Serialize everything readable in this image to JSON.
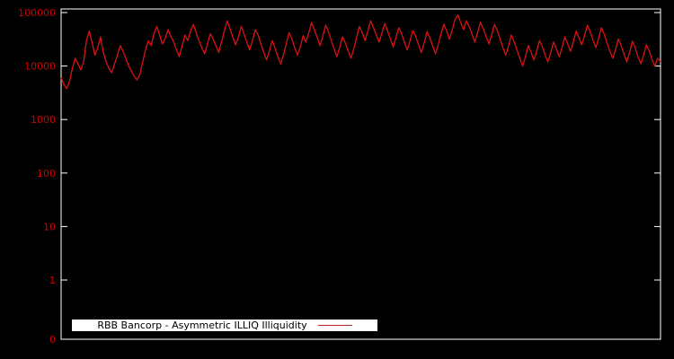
{
  "legend": {
    "label": "RBB Bancorp - Asymmetric ILLIQ Illiquidity"
  },
  "colors": {
    "background": "#000000",
    "axis": "#ffffff",
    "tick_label": "#cc0000",
    "series": "#dd1111",
    "legend_background": "#ffffff",
    "legend_text": "#000000"
  },
  "chart_data": {
    "type": "line",
    "title": "",
    "xlabel": "",
    "ylabel": "",
    "yscale": "log",
    "grid": false,
    "legend_position": "bottom-left",
    "y_tick_labels": [
      "100000",
      "10000",
      "1000",
      "100",
      "10",
      "1",
      "0"
    ],
    "y_tick_values": [
      100000,
      10000,
      1000,
      100,
      10,
      1
    ],
    "y_bottom_label": "0",
    "ylim_top": 100000,
    "series": [
      {
        "name": "RBB Bancorp - Asymmetric ILLIQ Illiquidity",
        "color": "#dd1111",
        "values": [
          6000,
          4500,
          3800,
          5200,
          9000,
          14000,
          11000,
          8500,
          12000,
          30000,
          45000,
          28000,
          16000,
          22000,
          35000,
          18000,
          12000,
          9000,
          7500,
          11000,
          16000,
          24000,
          19000,
          14000,
          10000,
          8000,
          6500,
          5500,
          7000,
          12000,
          20000,
          30000,
          24000,
          40000,
          55000,
          38000,
          26000,
          33000,
          48000,
          36000,
          28000,
          20000,
          15000,
          24000,
          38000,
          30000,
          45000,
          60000,
          42000,
          30000,
          22000,
          17000,
          26000,
          40000,
          32000,
          24000,
          18000,
          28000,
          45000,
          70000,
          50000,
          35000,
          25000,
          35000,
          55000,
          40000,
          28000,
          20000,
          30000,
          48000,
          38000,
          26000,
          18000,
          13000,
          19000,
          30000,
          22000,
          15000,
          11000,
          16000,
          26000,
          42000,
          32000,
          22000,
          16000,
          23000,
          37000,
          28000,
          42000,
          65000,
          48000,
          34000,
          24000,
          36000,
          58000,
          44000,
          30000,
          21000,
          15000,
          22000,
          35000,
          27000,
          19000,
          14000,
          21000,
          34000,
          55000,
          42000,
          30000,
          45000,
          70000,
          52000,
          38000,
          28000,
          42000,
          62000,
          46000,
          32000,
          23000,
          34000,
          52000,
          40000,
          28000,
          20000,
          30000,
          46000,
          36000,
          25000,
          18000,
          27000,
          44000,
          34000,
          24000,
          17000,
          25000,
          40000,
          60000,
          45000,
          32000,
          48000,
          75000,
          90000,
          65000,
          48000,
          70000,
          55000,
          40000,
          28000,
          42000,
          66000,
          50000,
          36000,
          26000,
          38000,
          60000,
          46000,
          32000,
          22000,
          16000,
          24000,
          38000,
          28000,
          20000,
          14000,
          10000,
          15000,
          24000,
          18000,
          13000,
          19000,
          30000,
          23000,
          16000,
          12000,
          18000,
          28000,
          21000,
          15000,
          22000,
          35000,
          26000,
          19000,
          28000,
          45000,
          34000,
          25000,
          37000,
          58000,
          44000,
          31000,
          22000,
          33000,
          52000,
          39000,
          27000,
          19000,
          14000,
          20000,
          32000,
          24000,
          17000,
          12000,
          18000,
          29000,
          22000,
          15000,
          11000,
          16000,
          25000,
          19000,
          13000,
          10000,
          14000,
          12000
        ]
      }
    ]
  }
}
